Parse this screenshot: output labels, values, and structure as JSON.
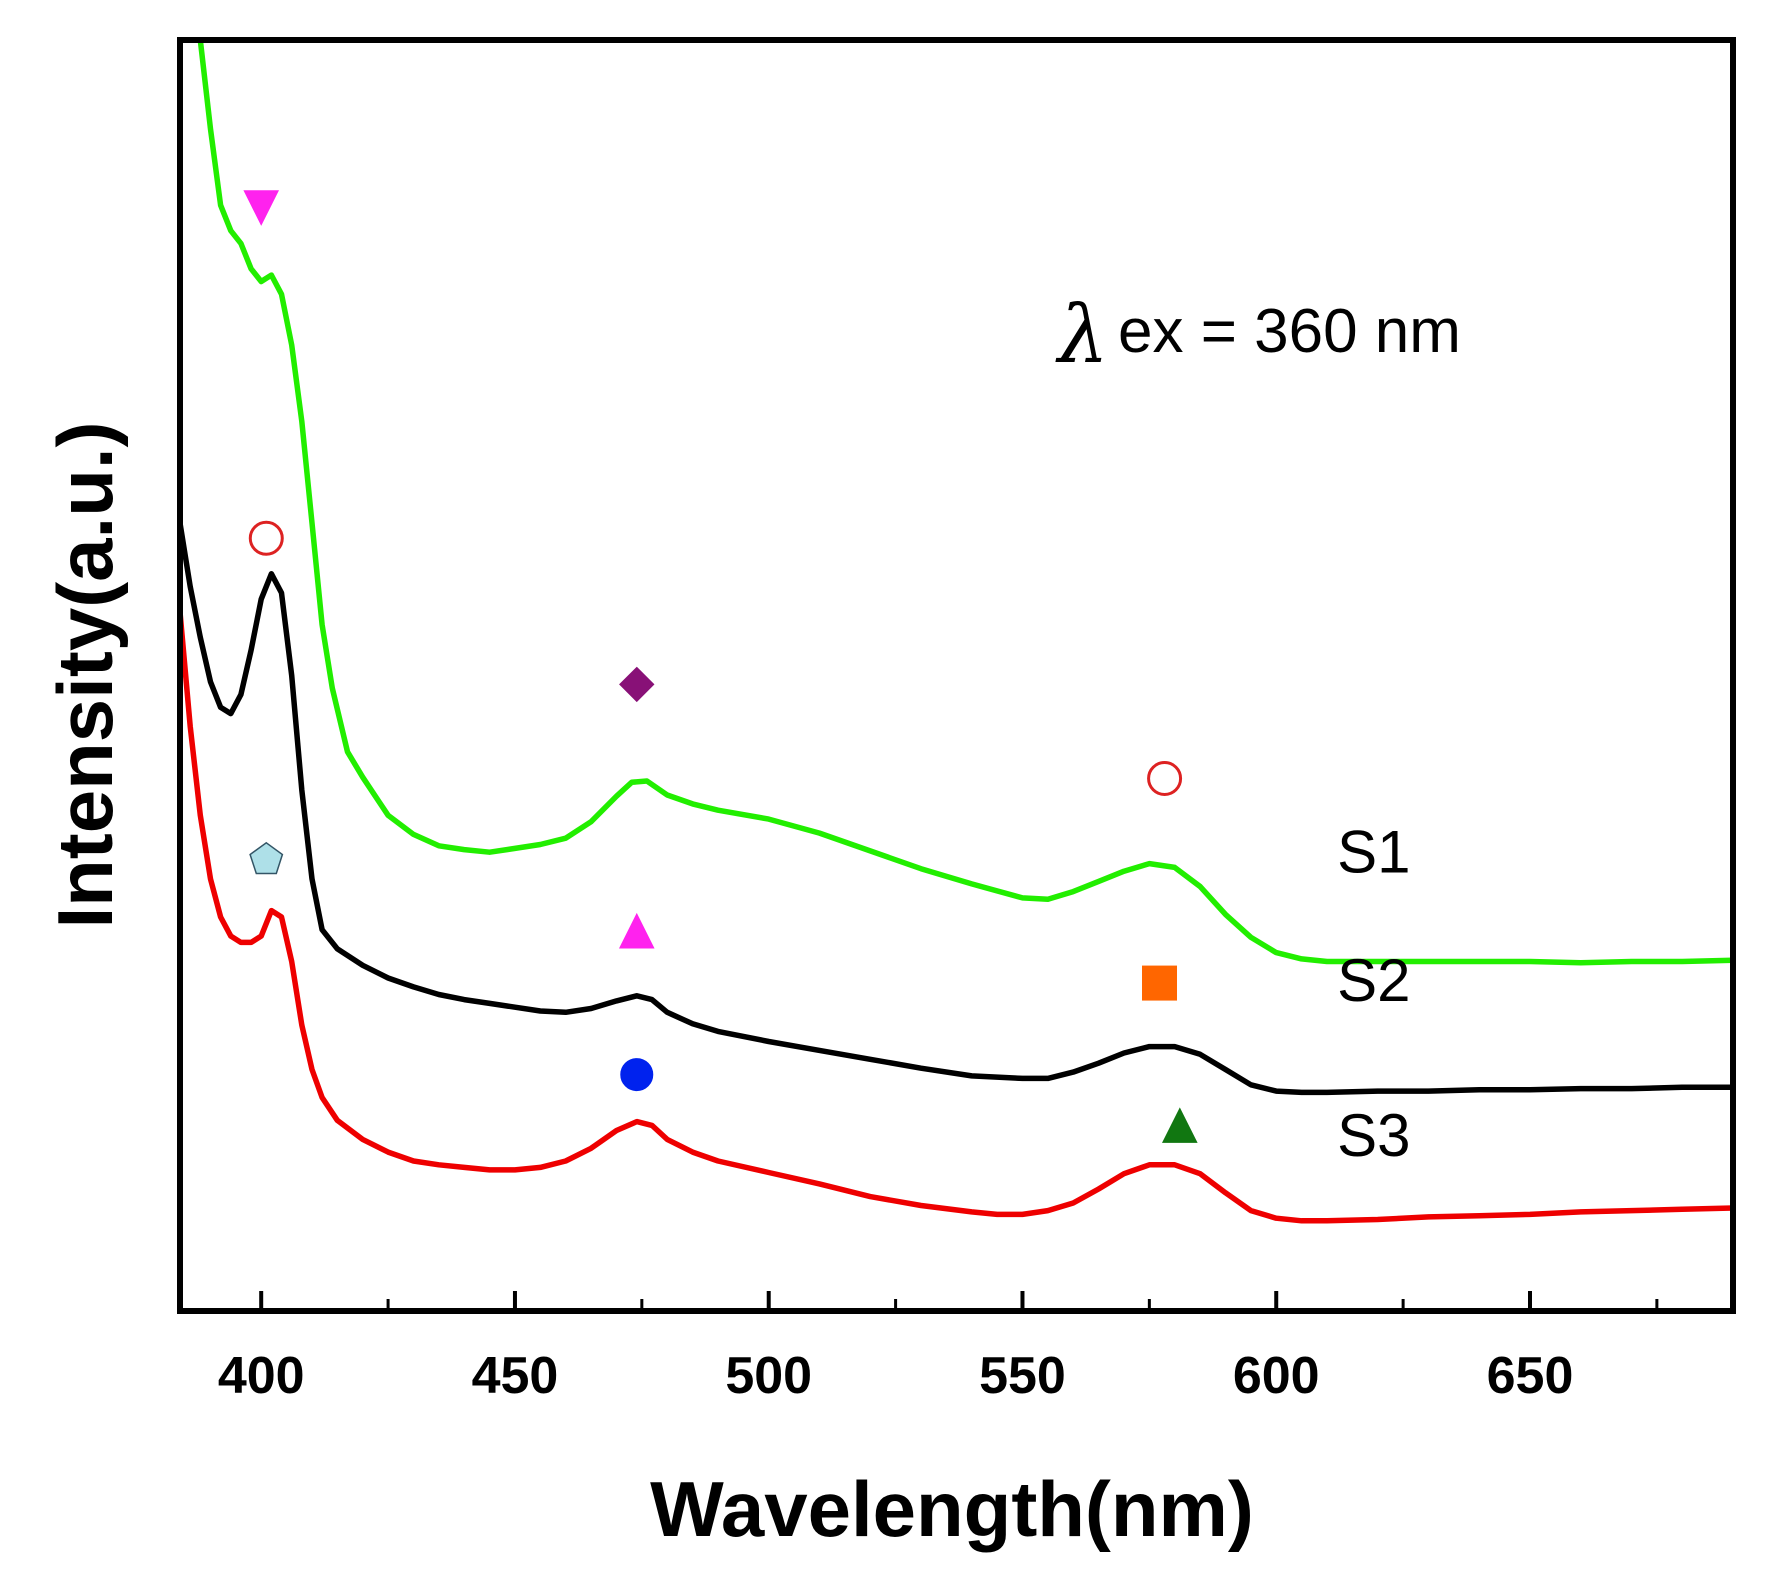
{
  "chart_data": {
    "type": "line",
    "title": "",
    "xlabel": "Wavelength(nm)",
    "ylabel": "Intensity(a.u.)",
    "xlim": [
      384,
      690
    ],
    "ylim": [
      0,
      100
    ],
    "xticks": [
      400,
      450,
      500,
      550,
      600,
      650
    ],
    "minor_xticks": [
      425,
      475,
      525,
      575,
      625,
      675
    ],
    "annotation": {
      "symbol": "λ",
      "text": "ex = 360 nm"
    },
    "series": [
      {
        "name": "S1",
        "color": "#22ee00",
        "points": [
          [
            388,
            100
          ],
          [
            390,
            93
          ],
          [
            392,
            87
          ],
          [
            394,
            85
          ],
          [
            396,
            84
          ],
          [
            398,
            82
          ],
          [
            400,
            81
          ],
          [
            402,
            81.5
          ],
          [
            404,
            80
          ],
          [
            406,
            76
          ],
          [
            408,
            70
          ],
          [
            410,
            62
          ],
          [
            412,
            54
          ],
          [
            414,
            49
          ],
          [
            417,
            44
          ],
          [
            420,
            42
          ],
          [
            425,
            39
          ],
          [
            430,
            37.5
          ],
          [
            435,
            36.6
          ],
          [
            440,
            36.3
          ],
          [
            445,
            36.1
          ],
          [
            450,
            36.4
          ],
          [
            455,
            36.7
          ],
          [
            460,
            37.2
          ],
          [
            465,
            38.5
          ],
          [
            470,
            40.5
          ],
          [
            473,
            41.6
          ],
          [
            476,
            41.7
          ],
          [
            480,
            40.6
          ],
          [
            485,
            39.9
          ],
          [
            490,
            39.4
          ],
          [
            500,
            38.7
          ],
          [
            510,
            37.6
          ],
          [
            520,
            36.2
          ],
          [
            530,
            34.8
          ],
          [
            540,
            33.6
          ],
          [
            550,
            32.5
          ],
          [
            555,
            32.4
          ],
          [
            560,
            33
          ],
          [
            565,
            33.8
          ],
          [
            570,
            34.6
          ],
          [
            575,
            35.2
          ],
          [
            580,
            34.9
          ],
          [
            585,
            33.4
          ],
          [
            590,
            31.2
          ],
          [
            595,
            29.4
          ],
          [
            600,
            28.2
          ],
          [
            605,
            27.7
          ],
          [
            610,
            27.5
          ],
          [
            620,
            27.5
          ],
          [
            630,
            27.5
          ],
          [
            640,
            27.5
          ],
          [
            650,
            27.5
          ],
          [
            660,
            27.4
          ],
          [
            670,
            27.5
          ],
          [
            680,
            27.5
          ],
          [
            690,
            27.6
          ]
        ]
      },
      {
        "name": "S2",
        "color": "#000000",
        "points": [
          [
            384,
            62
          ],
          [
            386,
            57
          ],
          [
            388,
            53
          ],
          [
            390,
            49.5
          ],
          [
            392,
            47.5
          ],
          [
            394,
            47
          ],
          [
            396,
            48.5
          ],
          [
            398,
            52
          ],
          [
            400,
            56
          ],
          [
            402,
            58
          ],
          [
            404,
            56.5
          ],
          [
            406,
            50
          ],
          [
            408,
            41
          ],
          [
            410,
            34
          ],
          [
            412,
            30
          ],
          [
            415,
            28.5
          ],
          [
            420,
            27.2
          ],
          [
            425,
            26.2
          ],
          [
            430,
            25.5
          ],
          [
            435,
            24.9
          ],
          [
            440,
            24.5
          ],
          [
            445,
            24.2
          ],
          [
            450,
            23.9
          ],
          [
            455,
            23.6
          ],
          [
            460,
            23.5
          ],
          [
            465,
            23.8
          ],
          [
            470,
            24.4
          ],
          [
            474,
            24.8
          ],
          [
            477,
            24.5
          ],
          [
            480,
            23.5
          ],
          [
            485,
            22.6
          ],
          [
            490,
            22
          ],
          [
            500,
            21.2
          ],
          [
            510,
            20.5
          ],
          [
            520,
            19.8
          ],
          [
            530,
            19.1
          ],
          [
            540,
            18.5
          ],
          [
            550,
            18.3
          ],
          [
            555,
            18.3
          ],
          [
            560,
            18.8
          ],
          [
            565,
            19.5
          ],
          [
            570,
            20.3
          ],
          [
            575,
            20.8
          ],
          [
            580,
            20.8
          ],
          [
            585,
            20.2
          ],
          [
            590,
            19
          ],
          [
            595,
            17.8
          ],
          [
            600,
            17.3
          ],
          [
            605,
            17.2
          ],
          [
            610,
            17.2
          ],
          [
            620,
            17.3
          ],
          [
            630,
            17.3
          ],
          [
            640,
            17.4
          ],
          [
            650,
            17.4
          ],
          [
            660,
            17.5
          ],
          [
            670,
            17.5
          ],
          [
            680,
            17.6
          ],
          [
            690,
            17.6
          ]
        ]
      },
      {
        "name": "S3",
        "color": "#ee0000",
        "points": [
          [
            384,
            55
          ],
          [
            386,
            46
          ],
          [
            388,
            39
          ],
          [
            390,
            34
          ],
          [
            392,
            31
          ],
          [
            394,
            29.5
          ],
          [
            396,
            29
          ],
          [
            398,
            29
          ],
          [
            400,
            29.5
          ],
          [
            402,
            31.5
          ],
          [
            404,
            31
          ],
          [
            406,
            27.5
          ],
          [
            408,
            22.5
          ],
          [
            410,
            19
          ],
          [
            412,
            16.8
          ],
          [
            415,
            15
          ],
          [
            420,
            13.5
          ],
          [
            425,
            12.5
          ],
          [
            430,
            11.8
          ],
          [
            435,
            11.5
          ],
          [
            440,
            11.3
          ],
          [
            445,
            11.1
          ],
          [
            450,
            11.1
          ],
          [
            455,
            11.3
          ],
          [
            460,
            11.8
          ],
          [
            465,
            12.8
          ],
          [
            470,
            14.2
          ],
          [
            474,
            14.9
          ],
          [
            477,
            14.6
          ],
          [
            480,
            13.5
          ],
          [
            485,
            12.5
          ],
          [
            490,
            11.8
          ],
          [
            500,
            10.9
          ],
          [
            510,
            10
          ],
          [
            520,
            9
          ],
          [
            530,
            8.3
          ],
          [
            540,
            7.8
          ],
          [
            545,
            7.6
          ],
          [
            550,
            7.6
          ],
          [
            555,
            7.9
          ],
          [
            560,
            8.5
          ],
          [
            565,
            9.6
          ],
          [
            570,
            10.8
          ],
          [
            575,
            11.5
          ],
          [
            580,
            11.5
          ],
          [
            585,
            10.8
          ],
          [
            590,
            9.3
          ],
          [
            595,
            7.9
          ],
          [
            600,
            7.3
          ],
          [
            605,
            7.1
          ],
          [
            610,
            7.1
          ],
          [
            620,
            7.2
          ],
          [
            630,
            7.4
          ],
          [
            640,
            7.5
          ],
          [
            650,
            7.6
          ],
          [
            660,
            7.8
          ],
          [
            670,
            7.9
          ],
          [
            680,
            8
          ],
          [
            690,
            8.1
          ]
        ]
      }
    ],
    "markers": [
      {
        "series": "S1",
        "shape": "triangle-down",
        "filled": true,
        "color": "#ff22ee",
        "x": 400,
        "y": 86.8
      },
      {
        "series": "S1",
        "shape": "diamond",
        "filled": true,
        "color": "#881177",
        "x": 474,
        "y": 49.3
      },
      {
        "series": "S1",
        "shape": "circle",
        "filled": false,
        "color": "#dd2222",
        "x": 578,
        "y": 41.9
      },
      {
        "series": "S2",
        "shape": "circle",
        "filled": false,
        "color": "#dd2222",
        "x": 401,
        "y": 60.8
      },
      {
        "series": "S2",
        "shape": "triangle-up",
        "filled": true,
        "color": "#ff22ee",
        "x": 474,
        "y": 29.9
      },
      {
        "series": "S2",
        "shape": "square",
        "filled": true,
        "color": "#ff6600",
        "x": 577,
        "y": 25.8
      },
      {
        "series": "S3",
        "shape": "pentagon",
        "filled": true,
        "color": "#aee0e8",
        "x": 401,
        "y": 35.5
      },
      {
        "series": "S3",
        "shape": "circle",
        "filled": true,
        "color": "#0022ee",
        "x": 474,
        "y": 18.6
      },
      {
        "series": "S3",
        "shape": "triangle-up",
        "filled": true,
        "color": "#117711",
        "x": 581,
        "y": 14.6
      }
    ],
    "series_labels": [
      {
        "text": "S1",
        "x": 612,
        "y": 34.5
      },
      {
        "text": "S2",
        "x": 612,
        "y": 24.4
      },
      {
        "text": "S3",
        "x": 612,
        "y": 12.2
      }
    ]
  }
}
